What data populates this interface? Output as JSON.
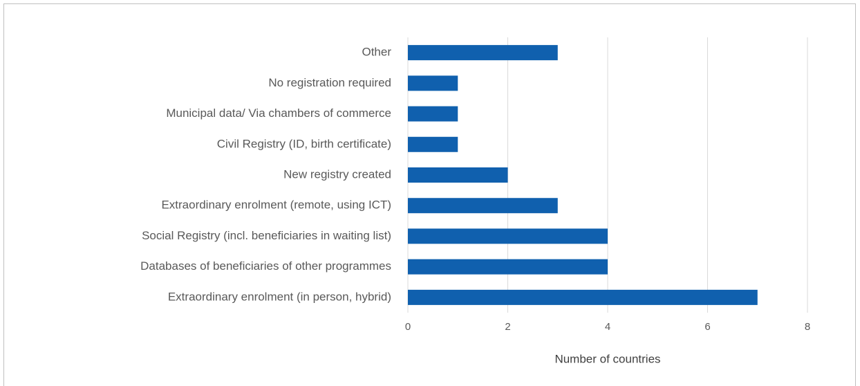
{
  "chart_data": {
    "type": "barh",
    "categories": [
      "Other",
      "No registration required",
      "Municipal data/ Via chambers of commerce",
      "Civil Registry (ID, birth certificate)",
      "New registry created",
      "Extraordinary enrolment (remote, using ICT)",
      "Social Registry (incl. beneficiaries in waiting list)",
      "Databases of beneficiaries of other programmes",
      "Extraordinary enrolment (in person, hybrid)"
    ],
    "values": [
      3,
      1,
      1,
      1,
      2,
      3,
      4,
      4,
      7
    ],
    "color": "#1060ae",
    "xlabel": "Number of countries",
    "xlim": [
      0,
      8
    ],
    "xticks": [
      0,
      2,
      4,
      6,
      8
    ],
    "grid": true
  }
}
